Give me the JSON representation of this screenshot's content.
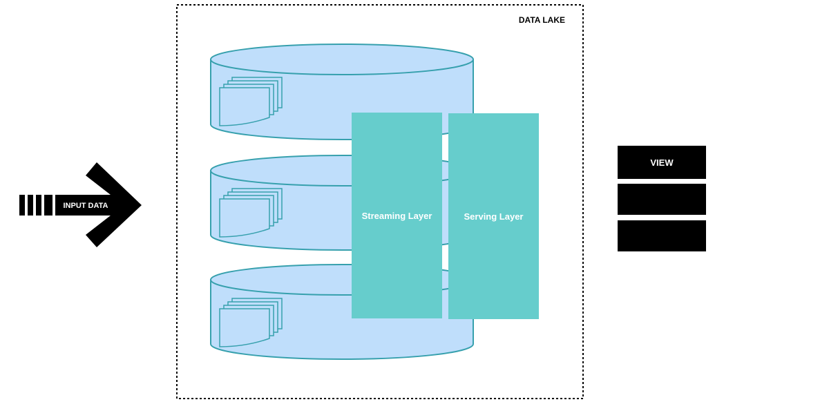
{
  "input": {
    "label": "INPUT DATA"
  },
  "lake": {
    "title": "DATA LAKE"
  },
  "layers": {
    "streaming": "Streaming Layer",
    "serving": "Serving Layer"
  },
  "view": {
    "label": "VIEW"
  },
  "colors": {
    "cylinder_fill": "#bfdefb",
    "cylinder_stroke": "#36a0ad",
    "layer_fill": "#66cdcc",
    "black": "#000000",
    "white": "#ffffff"
  }
}
